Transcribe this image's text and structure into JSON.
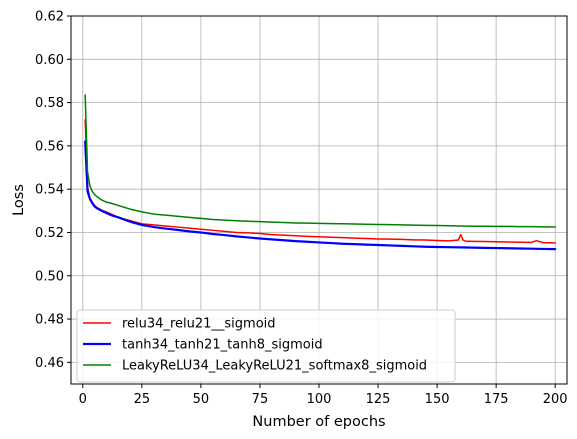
{
  "chart_data": {
    "type": "line",
    "title": "",
    "xlabel": "Number of epochs",
    "ylabel": "Loss",
    "xlim": [
      -5,
      205
    ],
    "ylim": [
      0.45,
      0.62
    ],
    "xticks": [
      0,
      25,
      50,
      75,
      100,
      125,
      150,
      175,
      200
    ],
    "yticks": [
      0.46,
      0.48,
      0.5,
      0.52,
      0.54,
      0.56,
      0.58,
      0.6,
      0.62
    ],
    "xtick_labels": [
      "0",
      "25",
      "50",
      "75",
      "100",
      "125",
      "150",
      "175",
      "200"
    ],
    "ytick_labels": [
      "0.46",
      "0.48",
      "0.50",
      "0.52",
      "0.54",
      "0.56",
      "0.58",
      "0.60",
      "0.62"
    ],
    "grid": true,
    "legend_position": "bottom-left",
    "series": [
      {
        "name": "relu34_relu21__sigmoid",
        "color": "#ff0000",
        "line_width": 1.5,
        "x": [
          1,
          2,
          3,
          4,
          5,
          6,
          8,
          10,
          12,
          15,
          20,
          25,
          30,
          35,
          40,
          45,
          50,
          55,
          60,
          65,
          70,
          75,
          80,
          85,
          90,
          95,
          100,
          105,
          110,
          115,
          120,
          125,
          130,
          135,
          140,
          145,
          150,
          155,
          159,
          160,
          161,
          162,
          165,
          170,
          175,
          180,
          185,
          190,
          192,
          195,
          200
        ],
        "values": [
          0.572,
          0.541,
          0.536,
          0.534,
          0.5325,
          0.5315,
          0.5303,
          0.5295,
          0.5285,
          0.527,
          0.5255,
          0.524,
          0.5235,
          0.523,
          0.5225,
          0.522,
          0.5215,
          0.521,
          0.5205,
          0.52,
          0.5198,
          0.5195,
          0.519,
          0.5188,
          0.5185,
          0.5182,
          0.518,
          0.5178,
          0.5176,
          0.5174,
          0.5172,
          0.517,
          0.5169,
          0.5168,
          0.5166,
          0.5165,
          0.5163,
          0.5161,
          0.5165,
          0.519,
          0.5165,
          0.516,
          0.5159,
          0.5158,
          0.5157,
          0.5156,
          0.5155,
          0.5154,
          0.5162,
          0.5153,
          0.5152
        ]
      },
      {
        "name": "tanh34_tanh21_tanh8_sigmoid",
        "color": "#0000ff",
        "line_width": 2.2,
        "x": [
          1,
          2,
          3,
          4,
          5,
          6,
          8,
          10,
          12,
          15,
          20,
          25,
          30,
          35,
          40,
          45,
          50,
          55,
          60,
          65,
          70,
          75,
          80,
          85,
          90,
          95,
          100,
          105,
          110,
          115,
          120,
          125,
          130,
          135,
          140,
          145,
          150,
          155,
          160,
          165,
          170,
          175,
          180,
          185,
          190,
          195,
          200
        ],
        "values": [
          0.562,
          0.539,
          0.5355,
          0.5335,
          0.532,
          0.5312,
          0.53,
          0.529,
          0.528,
          0.527,
          0.525,
          0.5235,
          0.5225,
          0.5218,
          0.5212,
          0.5205,
          0.52,
          0.5193,
          0.5188,
          0.5182,
          0.5177,
          0.5172,
          0.5168,
          0.5164,
          0.516,
          0.5157,
          0.5154,
          0.5151,
          0.5148,
          0.5146,
          0.5144,
          0.5142,
          0.514,
          0.5138,
          0.5136,
          0.5134,
          0.5133,
          0.5132,
          0.5131,
          0.513,
          0.5129,
          0.5128,
          0.5127,
          0.5126,
          0.5125,
          0.5124,
          0.5123
        ]
      },
      {
        "name": "LeakyReLU34_LeakyReLU21_softmax8_sigmoid",
        "color": "#008000",
        "line_width": 1.5,
        "x": [
          1,
          2,
          3,
          4,
          5,
          6,
          8,
          10,
          12,
          15,
          20,
          25,
          30,
          35,
          40,
          45,
          50,
          55,
          60,
          65,
          70,
          75,
          80,
          85,
          90,
          95,
          100,
          105,
          110,
          115,
          120,
          125,
          130,
          135,
          140,
          145,
          150,
          155,
          160,
          165,
          170,
          175,
          180,
          185,
          190,
          195,
          200
        ],
        "values": [
          0.5835,
          0.548,
          0.5415,
          0.539,
          0.5375,
          0.5365,
          0.535,
          0.534,
          0.5335,
          0.5325,
          0.5308,
          0.5295,
          0.5285,
          0.528,
          0.5275,
          0.527,
          0.5265,
          0.526,
          0.5257,
          0.5254,
          0.5252,
          0.525,
          0.5248,
          0.5246,
          0.5244,
          0.5243,
          0.5242,
          0.5241,
          0.524,
          0.5239,
          0.5238,
          0.5237,
          0.5236,
          0.5235,
          0.5234,
          0.5233,
          0.5232,
          0.5231,
          0.523,
          0.5229,
          0.5229,
          0.5228,
          0.5228,
          0.5227,
          0.5227,
          0.5226,
          0.5225
        ]
      }
    ]
  }
}
